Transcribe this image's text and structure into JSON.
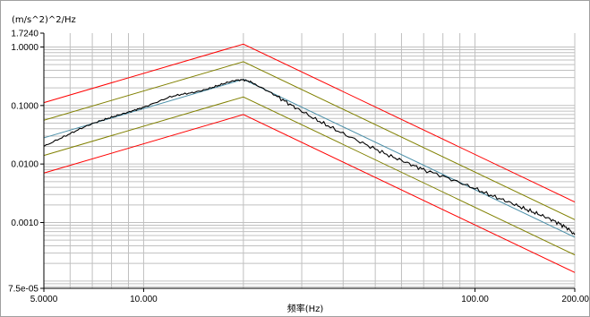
{
  "chart_data": {
    "type": "line",
    "ylabel": "(m/s^2)^2/Hz",
    "xlabel": "频率(Hz)",
    "x_scale": "log",
    "y_scale": "log",
    "xlim": [
      5.0,
      200.0
    ],
    "ylim": [
      7.5e-05,
      1.724
    ],
    "x_ticks": [
      {
        "value": 5.0,
        "label": "5.0000"
      },
      {
        "value": 10.0,
        "label": "10.000"
      },
      {
        "value": 100.0,
        "label": "100.00"
      },
      {
        "value": 200.0,
        "label": "200.00"
      }
    ],
    "y_ticks": [
      {
        "value": 1.724,
        "label": "1.7240"
      },
      {
        "value": 1.0,
        "label": "1.0000"
      },
      {
        "value": 0.1,
        "label": "0.1000"
      },
      {
        "value": 0.01,
        "label": "0.0100"
      },
      {
        "value": 0.001,
        "label": "0.0010"
      },
      {
        "value": 7.5e-05,
        "label": "7.5e-05"
      }
    ],
    "grid": true,
    "colors": {
      "abort_limit": "#ff0000",
      "alarm_limit": "#808000",
      "reference": "#4a8fa8",
      "measured": "#000000",
      "grid": "#c0c0c0"
    },
    "series": [
      {
        "color_key": "abort_limit",
        "x": [
          5,
          20,
          200
        ],
        "y": [
          0.112,
          1.12,
          0.00224
        ]
      },
      {
        "color_key": "alarm_limit",
        "x": [
          5,
          20,
          200
        ],
        "y": [
          0.056,
          0.56,
          0.00112
        ]
      },
      {
        "color_key": "alarm_limit",
        "x": [
          5,
          20,
          200
        ],
        "y": [
          0.014,
          0.14,
          0.00028
        ]
      },
      {
        "color_key": "abort_limit",
        "x": [
          5,
          20,
          200
        ],
        "y": [
          0.007,
          0.07,
          0.00014
        ]
      },
      {
        "color_key": "reference",
        "x": [
          5,
          20,
          200
        ],
        "y": [
          0.028,
          0.28,
          0.00056
        ]
      },
      {
        "color_key": "measured",
        "x": [
          5,
          5.5,
          6,
          6.5,
          7,
          7.5,
          8,
          8.5,
          9,
          9.5,
          10,
          11,
          12,
          13,
          14,
          15,
          16,
          17,
          18,
          19,
          20,
          21,
          22,
          24,
          26,
          28,
          30,
          33,
          36,
          40,
          45,
          50,
          55,
          60,
          65,
          70,
          80,
          90,
          100,
          110,
          120,
          130,
          140,
          150,
          160,
          170,
          180,
          190,
          200
        ],
        "y": [
          0.02,
          0.026,
          0.033,
          0.041,
          0.049,
          0.056,
          0.063,
          0.07,
          0.077,
          0.085,
          0.093,
          0.115,
          0.14,
          0.155,
          0.165,
          0.18,
          0.2,
          0.225,
          0.25,
          0.27,
          0.275,
          0.255,
          0.22,
          0.17,
          0.13,
          0.1,
          0.08,
          0.058,
          0.045,
          0.033,
          0.024,
          0.018,
          0.014,
          0.0115,
          0.0095,
          0.008,
          0.0062,
          0.0048,
          0.0038,
          0.003,
          0.0025,
          0.0021,
          0.00175,
          0.0015,
          0.0013,
          0.00112,
          0.00095,
          0.0008,
          0.00062
        ]
      }
    ]
  }
}
